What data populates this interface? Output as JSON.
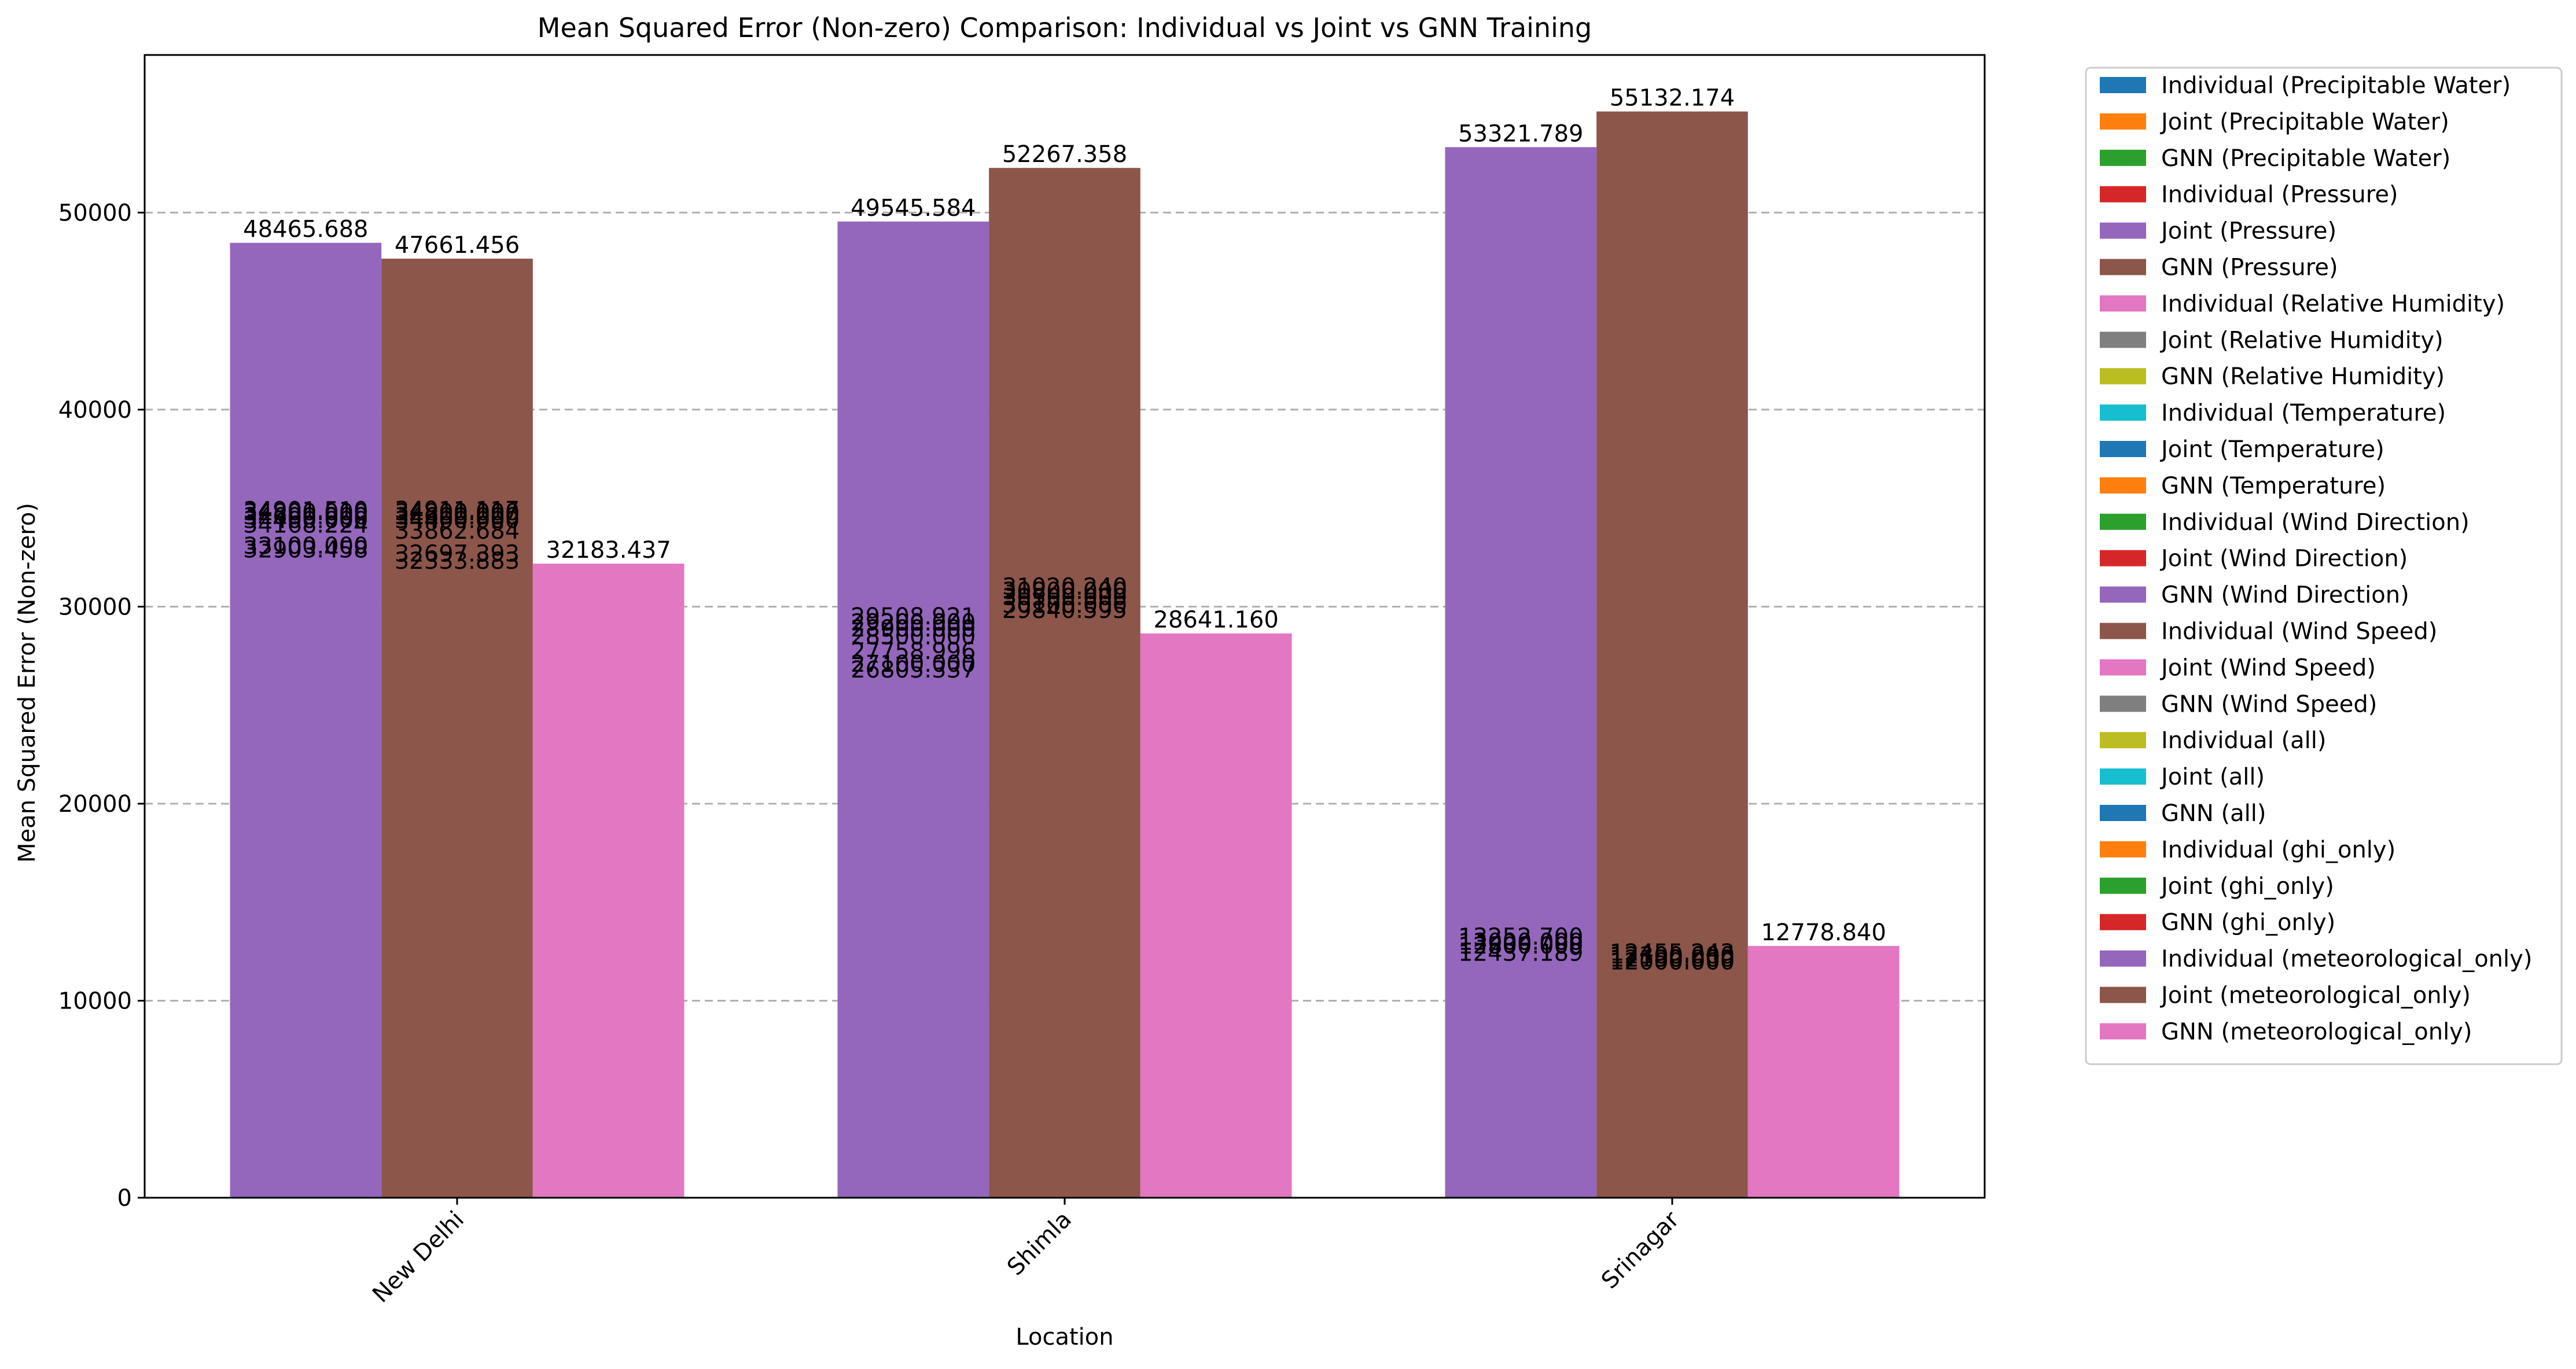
{
  "chart_data": {
    "type": "bar",
    "title": "Mean Squared Error (Non-zero) Comparison: Individual vs Joint vs GNN Training",
    "xlabel": "Location",
    "ylabel": "Mean Squared Error (Non-zero)",
    "categories": [
      "New Delhi",
      "Shimla",
      "Srinagar"
    ],
    "ylim": [
      0,
      58000
    ],
    "yticks": [
      0,
      10000,
      20000,
      30000,
      40000,
      50000
    ],
    "grid": "horizontal dashed",
    "legend_position": "outside-right",
    "series": [
      {
        "name": "Individual (Precipitable Water)",
        "color": "#1f77b4",
        "values": [
          null,
          null,
          null
        ]
      },
      {
        "name": "Joint (Precipitable Water)",
        "color": "#ff7f0e",
        "values": [
          null,
          null,
          null
        ]
      },
      {
        "name": "GNN (Precipitable Water)",
        "color": "#2ca02c",
        "values": [
          null,
          null,
          null
        ]
      },
      {
        "name": "Individual (Pressure)",
        "color": "#d62728",
        "values": [
          null,
          null,
          null
        ]
      },
      {
        "name": "Joint (Pressure)",
        "color": "#9467bd",
        "values": [
          48465.688,
          49545.584,
          53321.789
        ]
      },
      {
        "name": "GNN (Pressure)",
        "color": "#8c564b",
        "values": [
          47661.456,
          52267.358,
          55132.174
        ]
      },
      {
        "name": "Individual (Relative Humidity)",
        "color": "#e377c2",
        "values": [
          32183.437,
          28641.16,
          12778.84
        ]
      },
      {
        "name": "Joint (Relative Humidity)",
        "color": "#7f7f7f",
        "values": [
          null,
          null,
          null
        ]
      },
      {
        "name": "GNN (Relative Humidity)",
        "color": "#bcbd22",
        "values": [
          null,
          null,
          null
        ]
      },
      {
        "name": "Individual (Temperature)",
        "color": "#17becf",
        "values": [
          null,
          null,
          null
        ]
      },
      {
        "name": "Joint (Temperature)",
        "color": "#1f77b4",
        "values": [
          null,
          null,
          null
        ]
      },
      {
        "name": "GNN (Temperature)",
        "color": "#ff7f0e",
        "values": [
          null,
          null,
          null
        ]
      },
      {
        "name": "Individual (Wind Direction)",
        "color": "#2ca02c",
        "values": [
          null,
          null,
          null
        ]
      },
      {
        "name": "Joint (Wind Direction)",
        "color": "#d62728",
        "values": [
          null,
          null,
          null
        ]
      },
      {
        "name": "GNN (Wind Direction)",
        "color": "#9467bd",
        "values": [
          null,
          null,
          null
        ]
      },
      {
        "name": "Individual (Wind Speed)",
        "color": "#8c564b",
        "values": [
          null,
          null,
          null
        ]
      },
      {
        "name": "Joint (Wind Speed)",
        "color": "#e377c2",
        "values": [
          null,
          null,
          null
        ]
      },
      {
        "name": "GNN (Wind Speed)",
        "color": "#7f7f7f",
        "values": [
          null,
          null,
          null
        ]
      },
      {
        "name": "Individual (all)",
        "color": "#bcbd22",
        "values": [
          null,
          null,
          null
        ]
      },
      {
        "name": "Joint (all)",
        "color": "#17becf",
        "values": [
          null,
          null,
          null
        ]
      },
      {
        "name": "GNN (all)",
        "color": "#1f77b4",
        "values": [
          null,
          null,
          null
        ]
      },
      {
        "name": "Individual (ghi_only)",
        "color": "#ff7f0e",
        "values": [
          null,
          null,
          null
        ]
      },
      {
        "name": "Joint (ghi_only)",
        "color": "#2ca02c",
        "values": [
          null,
          null,
          null
        ]
      },
      {
        "name": "GNN (ghi_only)",
        "color": "#d62728",
        "values": [
          null,
          null,
          null
        ]
      },
      {
        "name": "Individual (meteorological_only)",
        "color": "#9467bd",
        "values": [
          null,
          null,
          null
        ]
      },
      {
        "name": "Joint (meteorological_only)",
        "color": "#8c564b",
        "values": [
          null,
          null,
          null
        ]
      },
      {
        "name": "GNN (meteorological_only)",
        "color": "#e377c2",
        "values": [
          null,
          null,
          null
        ]
      }
    ],
    "overlapping_labels": [
      {
        "category": "New Delhi",
        "group": 0,
        "values": [
          "34901.510",
          "34800.000",
          "34600.000",
          "34400.000",
          "34168.224",
          "33100.000",
          "32903.458"
        ]
      },
      {
        "category": "New Delhi",
        "group": 1,
        "values": [
          "34911.117",
          "34800.000",
          "34600.000",
          "34400.000",
          "33862.684",
          "32697.393",
          "32333.883"
        ]
      },
      {
        "category": "Shimla",
        "group": 0,
        "values": [
          "29508.921",
          "29200.000",
          "28900.000",
          "28500.000",
          "27758.996",
          "27100.000",
          "26805.337"
        ]
      },
      {
        "category": "Shimla",
        "group": 1,
        "values": [
          "31020.240",
          "30800.000",
          "30500.000",
          "30100.000",
          "29840.595"
        ]
      },
      {
        "category": "Srinagar",
        "group": 0,
        "values": [
          "13252.700",
          "13000.000",
          "12800.000",
          "12437.189"
        ]
      },
      {
        "category": "Srinagar",
        "group": 1,
        "values": [
          "12455.243",
          "12300.000",
          "12150.000",
          "12000.000"
        ]
      }
    ]
  }
}
